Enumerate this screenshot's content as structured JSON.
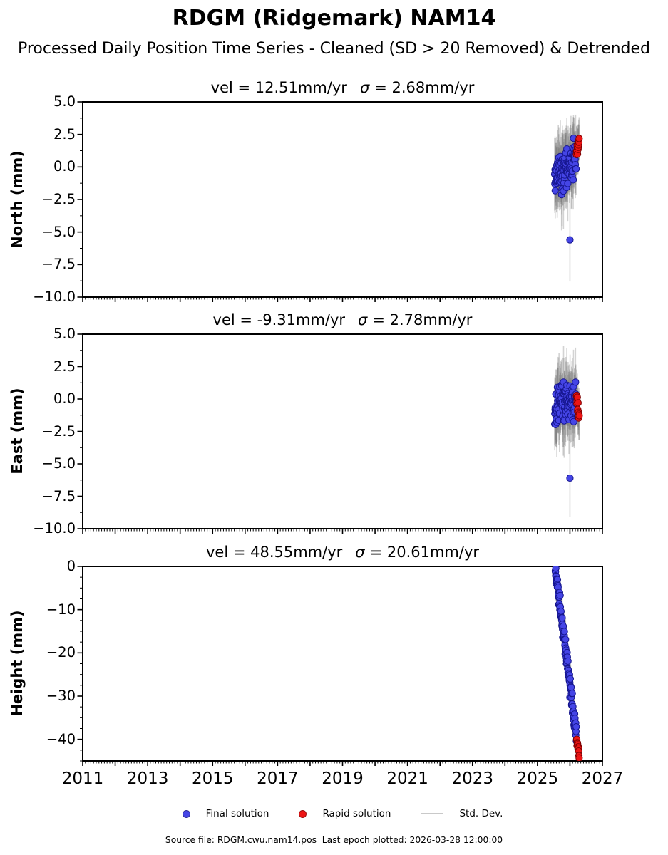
{
  "page": {
    "title": "RDGM (Ridgemark) NAM14",
    "subtitle": "Processed Daily Position Time Series - Cleaned (SD > 20 Removed) & Detrended",
    "footer": "Source file: RDGM.cwu.nam14.pos  Last epoch plotted: 2026-03-28 12:00:00"
  },
  "colors": {
    "final": "#4545e6",
    "final_edge": "#16168f",
    "rapid": "#ed1515",
    "rapid_edge": "#7e0000",
    "stddev": "#6e6e6e",
    "stddev_alpha": 0.3,
    "legend_stddev_line": "#c9c9c9",
    "axis": "#000000"
  },
  "legend": {
    "items": [
      {
        "label": "Final solution",
        "swatch": "final-dot"
      },
      {
        "label": "Rapid solution",
        "swatch": "rapid-dot"
      },
      {
        "label": "Std. Dev.",
        "swatch": "stddev-line"
      }
    ]
  },
  "xaxis": {
    "lim": [
      2011,
      2027
    ],
    "tick_values": [
      2011,
      2013,
      2015,
      2017,
      2019,
      2021,
      2023,
      2025,
      2027
    ],
    "tick_labels": [
      "2011",
      "2013",
      "2015",
      "2017",
      "2019",
      "2021",
      "2023",
      "2025",
      "2027"
    ],
    "major_step": 1,
    "minor_step": 0.08333333
  },
  "chart_data": [
    {
      "type": "scatter",
      "component": "North",
      "title_vel": "vel = 12.51mm/yr",
      "sigma_symbol": "σ",
      "sigma_text": "= 2.68mm/yr",
      "vel_mm_yr": 12.51,
      "sigma_mm_yr": 2.68,
      "ylabel": "North (mm)",
      "ylim": [
        -10.0,
        5.0
      ],
      "ytick_values": [
        5.0,
        2.5,
        0.0,
        -2.5,
        -5.0,
        -7.5,
        -10.0
      ],
      "ytick_labels": [
        "5.0",
        "2.5",
        "0.0",
        "−2.5",
        "−5.0",
        "−7.5",
        "−10.0"
      ],
      "ytick_minor_step": 1.25,
      "series": [
        {
          "name": "final",
          "n": 110,
          "t_start": 2025.53,
          "t_end": 2026.19,
          "v_start": -0.9,
          "v_end": 0.9,
          "spread": 0.75,
          "v_min": -2.7,
          "v_max": 2.2,
          "err_mean": 2.3,
          "err_spread": 0.7,
          "seed": 11
        },
        {
          "name": "rapid",
          "n": 13,
          "t_start": 2026.2,
          "t_end": 2026.285,
          "v_start": 0.9,
          "v_end": 2.15,
          "spread": 0.28,
          "v_min": 0.55,
          "v_max": 2.4,
          "err_mean": 1.7,
          "err_spread": 0.4,
          "seed": 12
        }
      ],
      "outliers": [
        {
          "series": "final",
          "t": 2026.0,
          "v": -5.6,
          "err": 3.2
        }
      ]
    },
    {
      "type": "scatter",
      "component": "East",
      "title_vel": "vel = -9.31mm/yr",
      "sigma_symbol": "σ",
      "sigma_text": "= 2.78mm/yr",
      "vel_mm_yr": -9.31,
      "sigma_mm_yr": 2.78,
      "ylabel": "East (mm)",
      "ylim": [
        -10.0,
        5.0
      ],
      "ytick_values": [
        5.0,
        2.5,
        0.0,
        -2.5,
        -5.0,
        -7.5,
        -10.0
      ],
      "ytick_labels": [
        "5.0",
        "2.5",
        "0.0",
        "−2.5",
        "−5.0",
        "−7.5",
        "−10.0"
      ],
      "ytick_minor_step": 1.25,
      "series": [
        {
          "name": "final",
          "n": 110,
          "t_start": 2025.53,
          "t_end": 2026.19,
          "v_start": -0.4,
          "v_end": -0.15,
          "spread": 0.75,
          "v_min": -2.2,
          "v_max": 1.3,
          "err_mean": 2.3,
          "err_spread": 0.7,
          "seed": 13
        },
        {
          "name": "rapid",
          "n": 13,
          "t_start": 2026.2,
          "t_end": 2026.285,
          "v_start": 0.35,
          "v_end": -1.4,
          "spread": 0.3,
          "v_min": -1.8,
          "v_max": 0.6,
          "err_mean": 1.7,
          "err_spread": 0.4,
          "seed": 14
        }
      ],
      "outliers": [
        {
          "series": "final",
          "t": 2026.0,
          "v": -6.1,
          "err": 3.0
        }
      ]
    },
    {
      "type": "scatter",
      "component": "Height",
      "title_vel": "vel = 48.55mm/yr",
      "sigma_symbol": "σ",
      "sigma_text": "= 20.61mm/yr",
      "vel_mm_yr": 48.55,
      "sigma_mm_yr": 20.61,
      "ylabel": "Height (mm)",
      "ylim": [
        -45,
        0
      ],
      "ytick_values": [
        0,
        -10,
        -20,
        -30,
        -40
      ],
      "ytick_labels": [
        "0",
        "−10",
        "−20",
        "−30",
        "−40"
      ],
      "ytick_minor_step": 2.5,
      "series": [
        {
          "name": "final",
          "n": 115,
          "t_start": 2025.55,
          "t_end": 2026.2,
          "v_start": -0.5,
          "v_end": -39.5,
          "spread": 1.1,
          "v_min": -43.0,
          "v_max": 0.4,
          "err_mean": 4.3,
          "err_spread": 1.1,
          "seed": 15
        },
        {
          "name": "rapid",
          "n": 12,
          "t_start": 2026.205,
          "t_end": 2026.285,
          "v_start": -39.8,
          "v_end": -43.8,
          "spread": 0.6,
          "v_min": -44.6,
          "v_max": -37.0,
          "err_mean": 3.2,
          "err_spread": 0.6,
          "seed": 16
        }
      ],
      "outliers": []
    }
  ]
}
